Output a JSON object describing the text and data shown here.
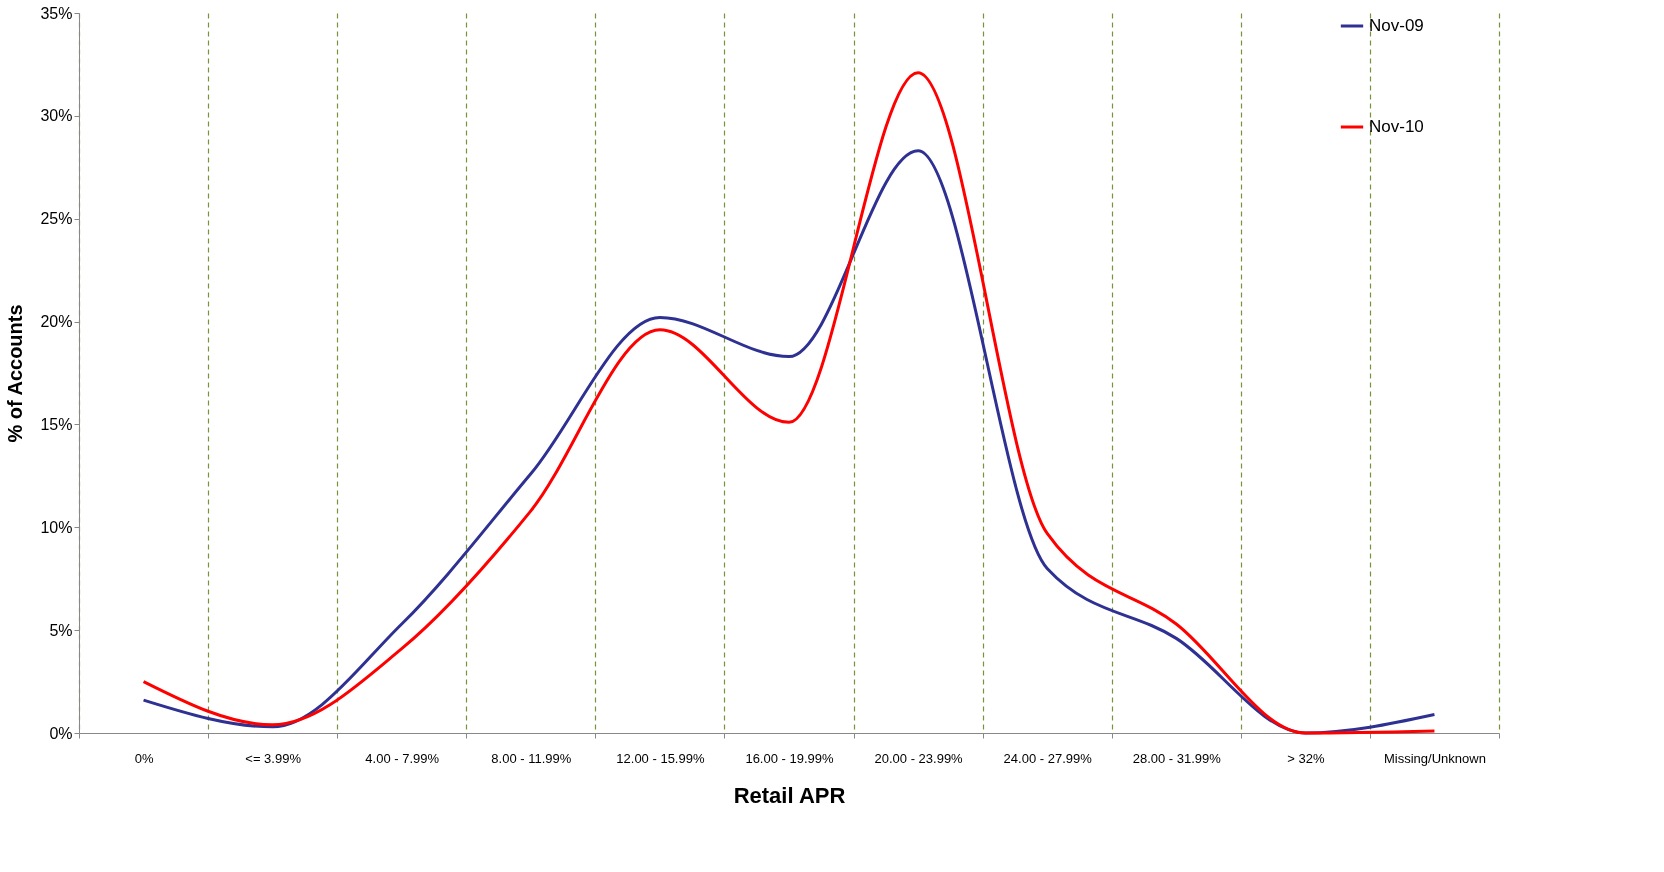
{
  "chart_data": {
    "type": "line",
    "xlabel": "Retail APR",
    "ylabel": "% of Accounts",
    "categories": [
      "0%",
      "<= 3.99%",
      "4.00 - 7.99%",
      "8.00 - 11.99%",
      "12.00 - 15.99%",
      "16.00 - 19.99%",
      "20.00 - 23.99%",
      "24.00 - 27.99%",
      "28.00 - 31.99%",
      "> 32%",
      "Missing/Unknown"
    ],
    "series": [
      {
        "name": "Nov-09",
        "color": "#2e3192",
        "values": [
          1.6,
          0.3,
          5.3,
          12.6,
          20.2,
          18.3,
          28.3,
          8.0,
          4.6,
          0,
          0.9
        ]
      },
      {
        "name": "Nov-10",
        "color": "#ff0000",
        "values": [
          2.5,
          0.4,
          4.1,
          10.8,
          19.6,
          15.1,
          32.1,
          9.7,
          5.3,
          0,
          0.1
        ]
      }
    ],
    "ylim": [
      0,
      35
    ],
    "yticks": [
      {
        "value": 0,
        "label": "0%"
      },
      {
        "value": 5,
        "label": "5%"
      },
      {
        "value": 10,
        "label": "10%"
      },
      {
        "value": 15,
        "label": "15%"
      },
      {
        "value": 20,
        "label": "20%"
      },
      {
        "value": 25,
        "label": "25%"
      },
      {
        "value": 30,
        "label": "30%"
      },
      {
        "value": 35,
        "label": "35%"
      }
    ],
    "grid": "x",
    "legend": "right",
    "marker": "none"
  }
}
